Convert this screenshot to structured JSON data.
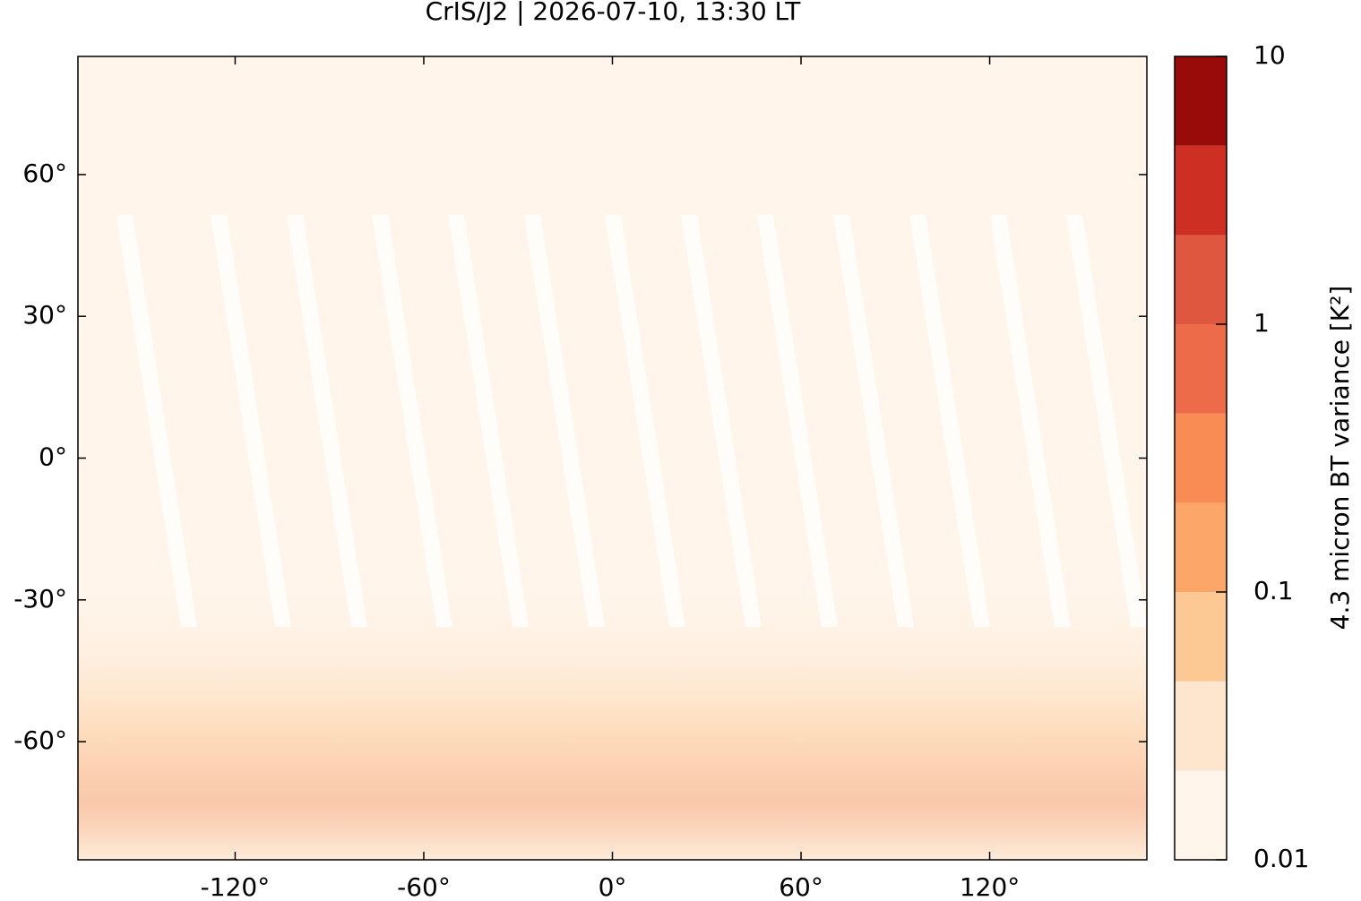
{
  "chart_data": {
    "type": "map",
    "title": "CrIS/J2 | 2026-07-10, 13:30 LT",
    "xlim": [
      -170,
      170
    ],
    "ylim": [
      -85,
      85
    ],
    "xticks": [
      {
        "value": -120,
        "label": "-120°"
      },
      {
        "value": -60,
        "label": "-60°"
      },
      {
        "value": 0,
        "label": "0°"
      },
      {
        "value": 60,
        "label": "60°"
      },
      {
        "value": 120,
        "label": "120°"
      }
    ],
    "yticks": [
      {
        "value": -60,
        "label": "-60°"
      },
      {
        "value": -30,
        "label": "-30°"
      },
      {
        "value": 0,
        "label": "0°"
      },
      {
        "value": 30,
        "label": "30°"
      },
      {
        "value": 60,
        "label": "60°"
      }
    ],
    "colorbar": {
      "label": "4.3 micron BT variance [K²]",
      "log_scale": true,
      "lim": [
        0.01,
        10
      ],
      "ticks": [
        0.01,
        0.1,
        1,
        10
      ],
      "levels": [
        0.01,
        0.0215,
        0.0464,
        0.1,
        0.215,
        0.464,
        1,
        2.15,
        4.64,
        10
      ],
      "colors": [
        "#fff5eb",
        "#fde6cd",
        "#fcc995",
        "#fca66a",
        "#f98b55",
        "#ee6b49",
        "#e0573f",
        "#cd2f23",
        "#990b08"
      ]
    }
  }
}
